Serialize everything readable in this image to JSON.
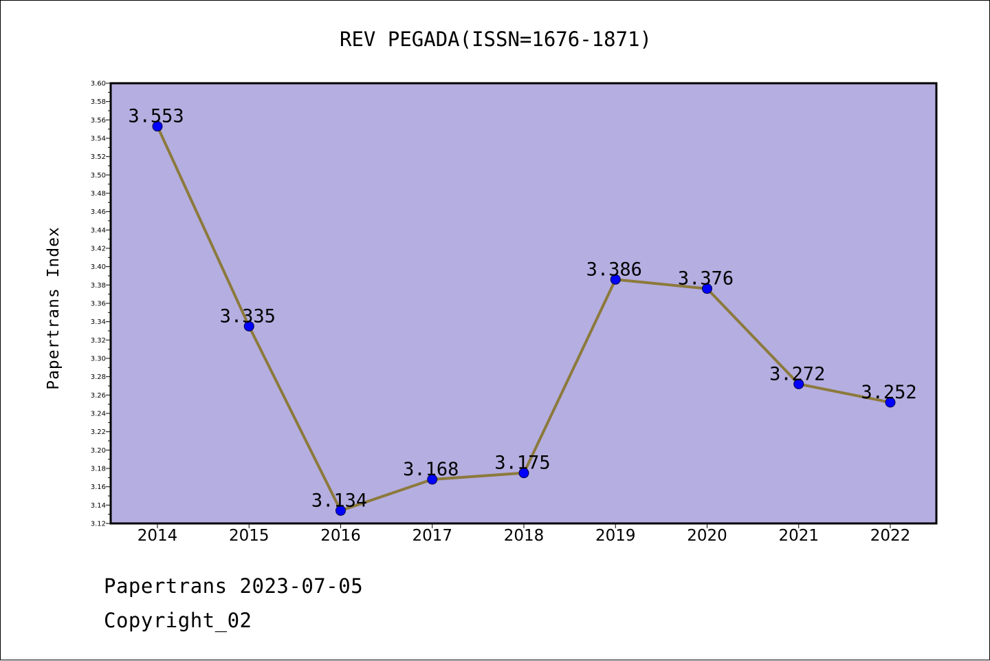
{
  "chart_data": {
    "type": "line",
    "title": "REV PEGADA(ISSN=1676-1871)",
    "xlabel": "",
    "ylabel": "Papertrans Index",
    "categories": [
      "2014",
      "2015",
      "2016",
      "2017",
      "2018",
      "2019",
      "2020",
      "2021",
      "2022"
    ],
    "series": [
      {
        "values": [
          3.553,
          3.335,
          3.134,
          3.168,
          3.175,
          3.386,
          3.376,
          3.272,
          3.252
        ],
        "data_labels": [
          "3.553",
          "3.335",
          "3.134",
          "3.168",
          "3.175",
          "3.386",
          "3.376",
          "3.272",
          "3.252"
        ]
      }
    ],
    "ylim": [
      3.12,
      3.6
    ],
    "y_ticks": [
      "3.12",
      "3.14",
      "3.16",
      "3.18",
      "3.20",
      "3.22",
      "3.24",
      "3.26",
      "3.28",
      "3.30",
      "3.32",
      "3.34",
      "3.36",
      "3.38",
      "3.40",
      "3.42",
      "3.44",
      "3.46",
      "3.48",
      "3.50",
      "3.52",
      "3.54",
      "3.56",
      "3.58",
      "3.60"
    ],
    "grid": false,
    "legend": "none",
    "colors": {
      "plot_background": "#b5aee1",
      "line": "#8c7a3c",
      "marker": "#0000ff",
      "axis": "#000000"
    }
  },
  "footer": {
    "line1": "Papertrans 2023-07-05",
    "line2": "Copyright_02"
  }
}
